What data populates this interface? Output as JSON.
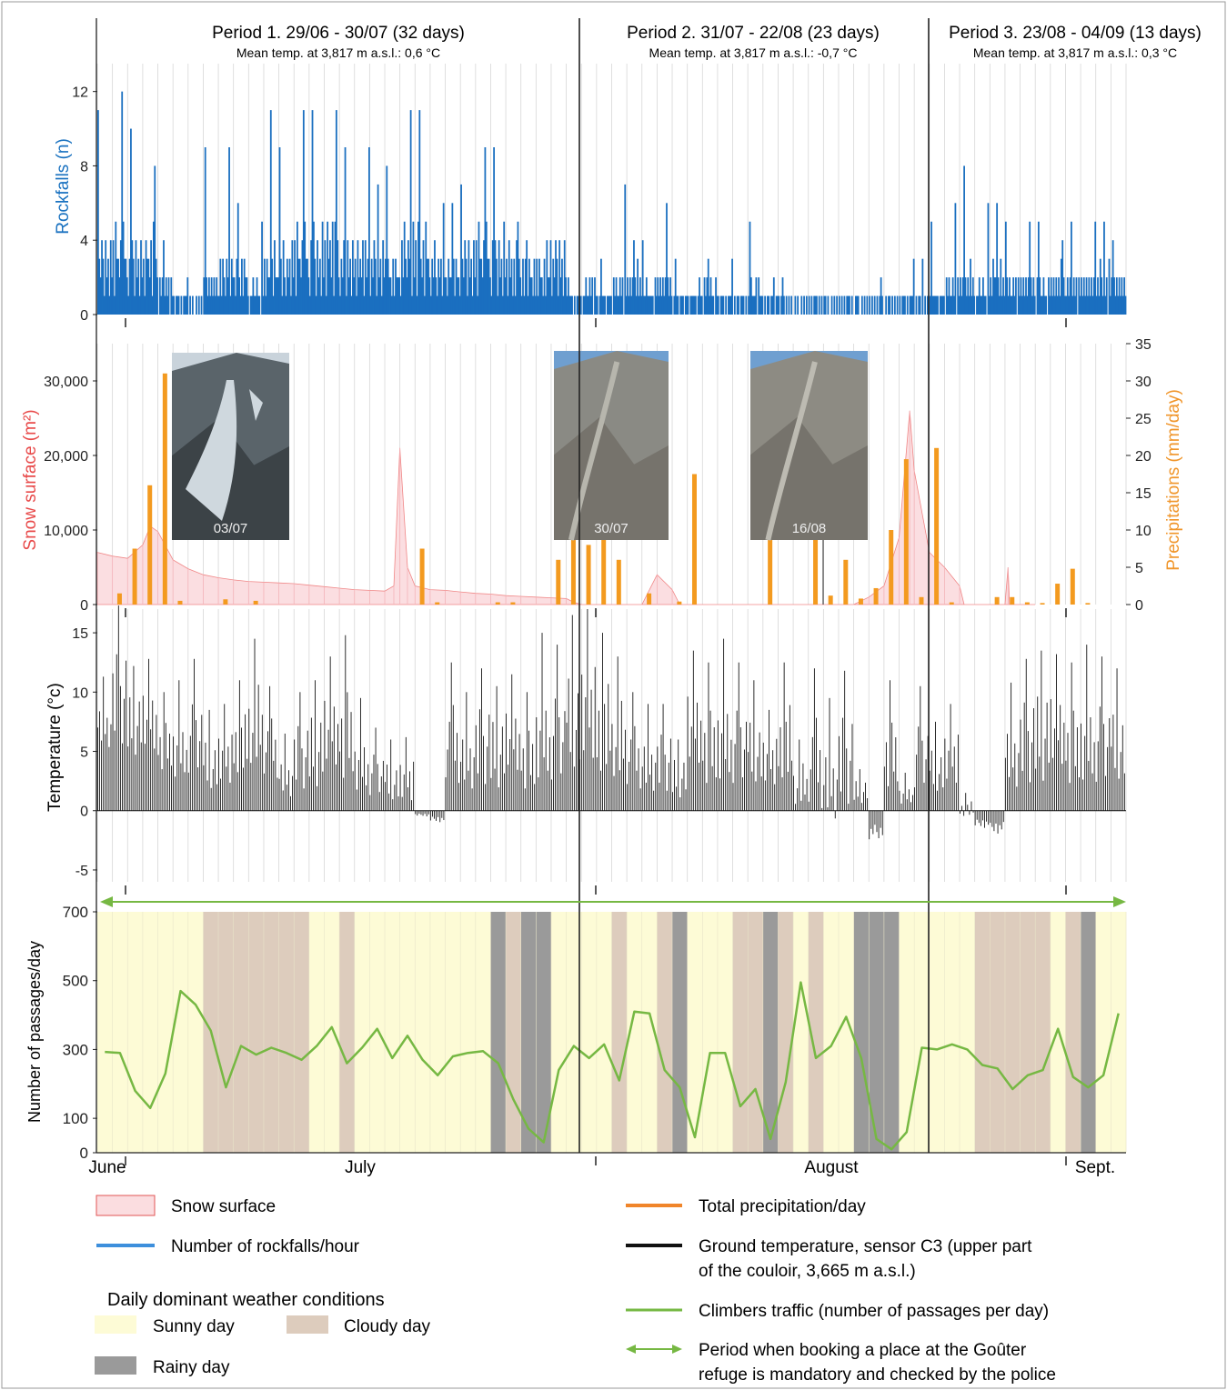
{
  "periods": [
    {
      "title": "Period 1. 29/06 - 30/07 (32 days)",
      "subtitle": "Mean temp. at 3,817 m a.s.l.: 0,6 °C"
    },
    {
      "title": "Period 2. 31/07 - 22/08 (23 days)",
      "subtitle": "Mean temp. at 3,817 m a.s.l.: -0,7 °C"
    },
    {
      "title": "Period 3. 23/08 - 04/09 (13 days)",
      "subtitle": "Mean temp. at 3,817 m a.s.l.: 0,3 °C"
    }
  ],
  "colors": {
    "rockfall": "#1a6fc0",
    "snow_fill": "#fbdde0",
    "snow_line": "#f08080",
    "precip": "#f39a1f",
    "temperature": "#111111",
    "traffic": "#76b843",
    "sunny": "#fdfbd6",
    "cloudy": "#ddccbd",
    "rainy": "#9a9a9a",
    "grid": "#d7d7d7",
    "rockfall_label": "#1a72c0",
    "snow_label": "#e84a4a",
    "precip_label": "#f0952a"
  },
  "photos": [
    {
      "label": "03/07"
    },
    {
      "label": "30/07"
    },
    {
      "label": "16/08"
    }
  ],
  "month_labels": [
    "June",
    "July",
    "August",
    "Sept."
  ],
  "chart_data": [
    {
      "type": "bar",
      "name": "rockfalls",
      "ylabel": "Rockfalls (n)",
      "ylim": [
        0,
        13.5
      ],
      "yticks": [
        0,
        4,
        8,
        12
      ],
      "x_unit": "day index (0 = 29/06)",
      "daily_mean_counts": [
        2.6,
        2.9,
        2.5,
        2.8,
        1.3,
        0.6,
        0.4,
        1.5,
        2.0,
        1.8,
        1.1,
        2.2,
        2.2,
        3.1,
        2.8,
        3.4,
        2.6,
        2.7,
        2.5,
        2.1,
        3.0,
        2.9,
        2.3,
        1.8,
        2.6,
        3.0,
        2.7,
        2.4,
        1.9,
        2.2,
        2.6,
        0.7,
        1.1,
        0.9,
        1.3,
        1.6,
        1.0,
        1.5,
        0.8,
        0.9,
        1.2,
        0.8,
        0.6,
        1.2,
        0.7,
        0.5,
        0.3,
        0.5,
        0.4,
        0.3,
        0.2,
        0.5,
        0.3,
        0.6,
        0.5,
        0.9,
        1.3,
        1.6,
        1.1,
        1.7,
        1.3,
        1.5,
        1.2,
        1.6,
        1.4,
        1.5,
        1.7,
        1.4
      ],
      "daily_peak_counts": [
        11,
        12,
        10,
        8,
        4,
        2,
        1,
        9,
        9,
        6,
        5,
        11,
        9,
        11,
        11,
        11,
        9,
        9,
        7,
        8,
        11,
        11,
        6,
        6,
        7,
        9,
        9,
        5,
        4,
        4,
        4,
        2,
        2,
        3,
        7,
        4,
        4,
        6,
        3,
        2,
        3,
        3,
        1,
        5,
        2,
        2,
        1,
        1,
        1,
        1,
        1,
        2,
        1,
        3,
        3,
        5,
        6,
        8,
        6,
        6,
        5,
        5,
        5,
        4,
        5,
        5,
        5,
        4
      ]
    },
    {
      "type": "area+bar",
      "name": "snow surface and precipitation",
      "ylabel": "Snow surface (m²)",
      "y2label": "Precipitations (mm/day)",
      "ylim": [
        0,
        35000
      ],
      "yticks": [
        0,
        10000,
        20000,
        30000
      ],
      "ytick_labels": [
        "0",
        "10,000",
        "20,000",
        "30,000"
      ],
      "y2lim": [
        0,
        35
      ],
      "y2ticks": [
        0,
        5,
        10,
        15,
        20,
        25,
        30,
        35
      ],
      "snow_surface": [
        [
          0,
          7000
        ],
        [
          1,
          6500
        ],
        [
          2,
          6200
        ],
        [
          3,
          8000
        ],
        [
          3.5,
          10500
        ],
        [
          4,
          9800
        ],
        [
          5,
          6000
        ],
        [
          6,
          4800
        ],
        [
          7,
          4000
        ],
        [
          8,
          3600
        ],
        [
          9,
          3300
        ],
        [
          10,
          3100
        ],
        [
          11,
          3000
        ],
        [
          12,
          2900
        ],
        [
          13,
          2800
        ],
        [
          14,
          2600
        ],
        [
          15,
          2400
        ],
        [
          16,
          2200
        ],
        [
          17,
          2000
        ],
        [
          18,
          1900
        ],
        [
          19,
          1800
        ],
        [
          19.6,
          2500
        ],
        [
          20,
          21000
        ],
        [
          20.5,
          5000
        ],
        [
          21,
          2500
        ],
        [
          22,
          2000
        ],
        [
          23,
          1900
        ],
        [
          24,
          1700
        ],
        [
          25,
          1500
        ],
        [
          26,
          1400
        ],
        [
          27,
          1200
        ],
        [
          28,
          1100
        ],
        [
          29,
          1000
        ],
        [
          30,
          900
        ],
        [
          31,
          800
        ],
        [
          31.5,
          300
        ],
        [
          32,
          0
        ],
        [
          33,
          0
        ],
        [
          34,
          0
        ],
        [
          35,
          0
        ],
        [
          36,
          0
        ],
        [
          37,
          4000
        ],
        [
          38,
          2000
        ],
        [
          38.5,
          0
        ],
        [
          50,
          0
        ],
        [
          51,
          1000
        ],
        [
          52,
          2500
        ],
        [
          53,
          9000
        ],
        [
          53.7,
          26000
        ],
        [
          54,
          18000
        ],
        [
          55,
          7000
        ],
        [
          56,
          5000
        ],
        [
          57,
          2500
        ],
        [
          57.3,
          0
        ],
        [
          60,
          0
        ],
        [
          60.2,
          5000
        ],
        [
          60.3,
          0
        ],
        [
          62,
          0
        ]
      ],
      "precip_days": [
        1,
        2,
        3,
        4,
        5,
        8,
        10,
        21,
        22,
        26,
        27,
        30,
        31,
        32,
        33,
        34,
        35,
        36,
        38,
        39,
        44,
        47,
        48,
        49,
        50,
        51,
        52,
        53,
        54,
        55,
        56,
        59,
        60,
        61,
        62,
        63,
        64,
        65,
        66
      ],
      "precip_values": [
        1.5,
        7.5,
        16,
        31,
        0.5,
        0.7,
        0.5,
        7.5,
        0.3,
        0.3,
        0.3,
        6,
        26.5,
        8,
        21.5,
        6,
        0,
        1.5,
        0.4,
        17.5,
        20.5,
        12,
        1.2,
        6,
        0.8,
        2.2,
        10,
        19.5,
        1,
        21,
        0.3,
        1,
        1,
        0.3,
        0.2,
        2.8,
        4.8,
        0.2,
        0
      ]
    },
    {
      "type": "bar",
      "name": "ground temperature",
      "ylabel": "Temperature (°c)",
      "ylim": [
        -6,
        17
      ],
      "yticks": [
        -5,
        0,
        5,
        10,
        15
      ],
      "daily_max": [
        11.3,
        17.3,
        12.2,
        12.8,
        10.0,
        11.0,
        12.8,
        8.5,
        9.0,
        11.0,
        14.5,
        10.5,
        6.5,
        10.0,
        11.0,
        13.0,
        14.8,
        9.5,
        7.0,
        6.0,
        6.2,
        -0.5,
        -1.0,
        12.5,
        10.0,
        12.0,
        10.5,
        11.5,
        10.0,
        15.0,
        14.0,
        16.5,
        17.0,
        15.0,
        13.0,
        10.0,
        9.0,
        9.0,
        6.0,
        13.5,
        12.5,
        14.5,
        12.5,
        11.0,
        8.5,
        12.5,
        6.0,
        12.0,
        9.5,
        11.8,
        3.5,
        -2.5,
        11.0,
        3.2,
        10.5,
        7.5,
        9.0,
        1.5,
        -1.5,
        -2.0,
        10.8,
        12.8,
        13.5,
        13.2,
        12.5,
        14.0,
        13.0,
        12.0
      ],
      "daily_min": [
        4,
        3,
        3,
        2,
        2,
        1,
        1,
        0,
        0,
        1,
        1,
        1,
        0,
        0,
        0,
        0,
        0,
        0,
        0,
        -0.5,
        -1,
        0,
        0,
        0,
        0,
        0,
        0,
        0,
        0,
        0,
        0,
        0,
        0,
        0,
        0,
        0,
        0,
        0,
        0,
        0,
        0,
        0,
        0,
        0,
        0,
        0,
        -1,
        -2.5,
        -3,
        -2,
        0,
        0,
        0,
        0,
        0,
        0,
        0,
        -1,
        -1.5,
        -1,
        0,
        0,
        0,
        0,
        0,
        0,
        0,
        0
      ]
    },
    {
      "type": "line",
      "name": "climbers traffic",
      "ylabel": "Number of passages/day",
      "ylim": [
        0,
        700
      ],
      "yticks": [
        0,
        100,
        300,
        500,
        700
      ],
      "x": [
        0,
        1,
        2,
        3,
        4,
        5,
        6,
        7,
        8,
        9,
        10,
        11,
        12,
        13,
        14,
        15,
        16,
        17,
        18,
        19,
        20,
        21,
        22,
        23,
        24,
        25,
        26,
        27,
        28,
        29,
        30,
        31,
        32,
        33,
        34,
        35,
        36,
        37,
        38,
        39,
        40,
        41,
        42,
        43,
        44,
        45,
        46,
        47,
        48,
        49,
        50,
        51,
        52,
        53,
        54,
        55,
        56,
        57,
        58,
        59,
        60,
        61,
        62,
        63,
        64,
        65,
        66,
        67
      ],
      "values": [
        293,
        290,
        180,
        130,
        230,
        470,
        430,
        355,
        190,
        310,
        285,
        305,
        290,
        270,
        310,
        365,
        260,
        305,
        360,
        275,
        340,
        270,
        225,
        280,
        290,
        295,
        260,
        155,
        70,
        30,
        240,
        310,
        275,
        315,
        210,
        410,
        405,
        240,
        190,
        45,
        290,
        290,
        135,
        185,
        40,
        205,
        495,
        275,
        310,
        395,
        275,
        40,
        10,
        60,
        305,
        300,
        315,
        300,
        255,
        245,
        185,
        225,
        240,
        360,
        220,
        190,
        225,
        405
      ]
    },
    {
      "type": "bands",
      "name": "daily dominant weather conditions",
      "x_unit": "day index (0 = 29/06)",
      "days": [
        "sunny",
        "sunny",
        "sunny",
        "sunny",
        "sunny",
        "sunny",
        "sunny",
        "cloudy",
        "cloudy",
        "cloudy",
        "cloudy",
        "cloudy",
        "cloudy",
        "cloudy",
        "sunny",
        "sunny",
        "cloudy",
        "sunny",
        "sunny",
        "sunny",
        "sunny",
        "sunny",
        "sunny",
        "sunny",
        "sunny",
        "sunny",
        "rainy",
        "cloudy",
        "rainy",
        "rainy",
        "sunny",
        "sunny",
        "sunny",
        "sunny",
        "cloudy",
        "sunny",
        "sunny",
        "cloudy",
        "rainy",
        "sunny",
        "sunny",
        "sunny",
        "cloudy",
        "cloudy",
        "rainy",
        "cloudy",
        "sunny",
        "cloudy",
        "sunny",
        "sunny",
        "rainy",
        "rainy",
        "rainy",
        "sunny",
        "sunny",
        "sunny",
        "sunny",
        "sunny",
        "cloudy",
        "cloudy",
        "cloudy",
        "cloudy",
        "cloudy",
        "sunny",
        "cloudy",
        "rainy",
        "sunny",
        "sunny"
      ]
    }
  ],
  "legend": {
    "snow_surface": "Snow surface",
    "rockfalls": "Number of rockfalls/hour",
    "weather_title": "Daily dominant weather conditions",
    "sunny": "Sunny day",
    "cloudy": "Cloudy day",
    "rainy": "Rainy day",
    "precip": "Total precipitation/day",
    "temperature_line1": "Ground temperature, sensor C3 (upper part",
    "temperature_line2": "of the couloir, 3,665 m a.s.l.)",
    "traffic": "Climbers traffic (number of passages per day)",
    "booking_line1": "Period when booking a place at the Goûter",
    "booking_line2": "refuge is mandatory and checked by the police"
  }
}
